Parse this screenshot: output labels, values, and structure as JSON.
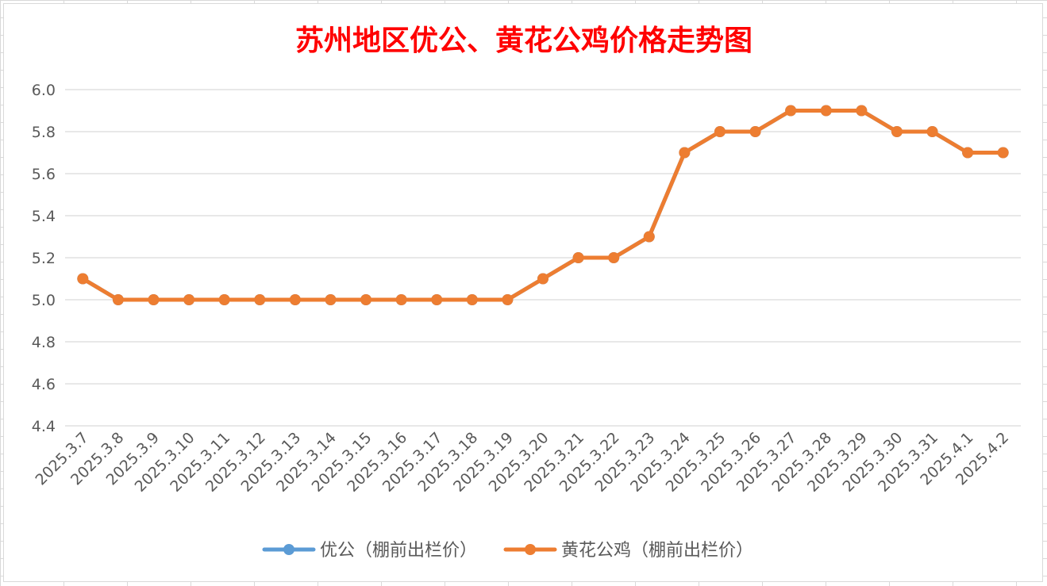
{
  "chart_data": {
    "type": "line",
    "title": "苏州地区优公、黄花公鸡价格走势图",
    "title_color": "#ff0000",
    "categories": [
      "2025.3.7",
      "2025.3.8",
      "2025.3.9",
      "2025.3.10",
      "2025.3.11",
      "2025.3.12",
      "2025.3.13",
      "2025.3.14",
      "2025.3.15",
      "2025.3.16",
      "2025.3.17",
      "2025.3.18",
      "2025.3.19",
      "2025.3.20",
      "2025.3.21",
      "2025.3.22",
      "2025.3.23",
      "2025.3.24",
      "2025.3.25",
      "2025.3.26",
      "2025.3.27",
      "2025.3.28",
      "2025.3.29",
      "2025.3.30",
      "2025.3.31",
      "2025.4.1",
      "2025.4.2"
    ],
    "series": [
      {
        "name": "优公（棚前出栏价）",
        "color": "#5b9bd5",
        "values": [
          5.1,
          5.0,
          5.0,
          5.0,
          5.0,
          5.0,
          5.0,
          5.0,
          5.0,
          5.0,
          5.0,
          5.0,
          5.0,
          5.1,
          5.2,
          5.2,
          5.3,
          5.7,
          5.8,
          5.8,
          5.9,
          5.9,
          5.9,
          5.8,
          5.8,
          5.7,
          5.7
        ]
      },
      {
        "name": "黄花公鸡（棚前出栏价）",
        "color": "#ed7d31",
        "values": [
          5.1,
          5.0,
          5.0,
          5.0,
          5.0,
          5.0,
          5.0,
          5.0,
          5.0,
          5.0,
          5.0,
          5.0,
          5.0,
          5.1,
          5.2,
          5.2,
          5.3,
          5.7,
          5.8,
          5.8,
          5.9,
          5.9,
          5.9,
          5.8,
          5.8,
          5.7,
          5.7
        ]
      }
    ],
    "ylim": [
      4.4,
      6.0
    ],
    "yticks": [
      "4.4",
      "4.6",
      "4.8",
      "5.0",
      "5.2",
      "5.4",
      "5.6",
      "5.8",
      "6.0"
    ],
    "grid": true,
    "legend": "bottom"
  }
}
